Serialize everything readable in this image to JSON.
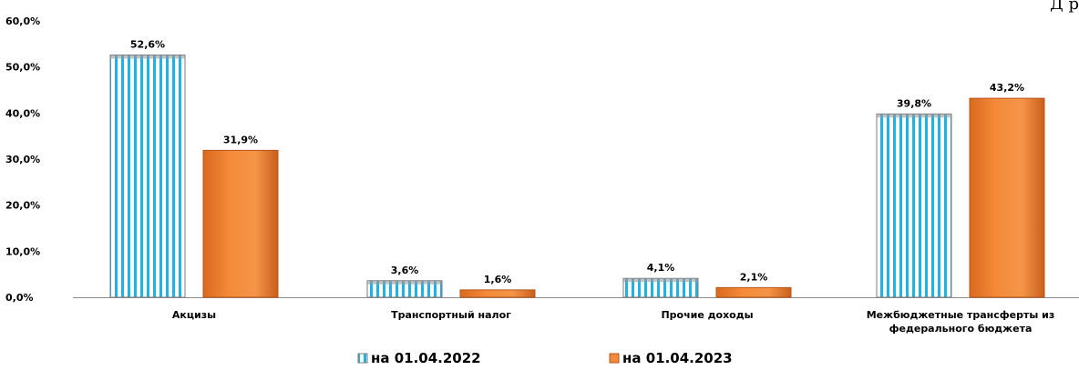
{
  "corner_text": "Д р",
  "chart_data": {
    "type": "bar",
    "categories": [
      [
        "Акцизы"
      ],
      [
        "Транспортный налог"
      ],
      [
        "Прочие доходы"
      ],
      [
        "Межбюджетные трансферты из",
        "федерального бюджета"
      ]
    ],
    "series": [
      {
        "name": "на 01.04.2022",
        "values": [
          52.6,
          3.6,
          4.1,
          39.8
        ],
        "labels": [
          "52,6%",
          "3,6%",
          "4,1%",
          "39,8%"
        ],
        "color": "#1fb2e4",
        "pattern": "vertical-stripes"
      },
      {
        "name": "на 01.04.2023",
        "values": [
          31.9,
          1.6,
          2.1,
          43.2
        ],
        "labels": [
          "31,9%",
          "1,6%",
          "2,1%",
          "43,2%"
        ],
        "color": "#f08a3c",
        "pattern": "solid"
      }
    ],
    "ylim": [
      0,
      60
    ],
    "yticks": [
      0,
      10,
      20,
      30,
      40,
      50,
      60
    ],
    "ytick_labels": [
      "0,0%",
      "10,0%",
      "20,0%",
      "30,0%",
      "40,0%",
      "50,0%",
      "60,0%"
    ],
    "grid": false,
    "legend_position": "bottom"
  }
}
